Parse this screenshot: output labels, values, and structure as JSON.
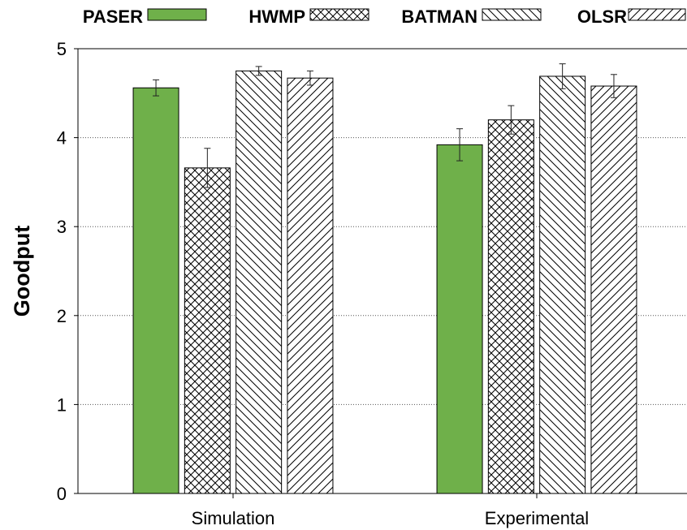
{
  "chart_data": {
    "type": "bar",
    "title": "",
    "xlabel": "",
    "ylabel": "Goodput",
    "ylim": [
      0,
      5
    ],
    "yticks": [
      0,
      1,
      2,
      3,
      4,
      5
    ],
    "grid": "horizontal-dotted",
    "legend_position": "top",
    "categories": [
      "Simulation",
      "Experimental"
    ],
    "series": [
      {
        "name": "PASER",
        "fill": "green",
        "color": "#6fb04a",
        "values": [
          4.56,
          3.92
        ],
        "errors": [
          0.09,
          0.18
        ]
      },
      {
        "name": "HWMP",
        "fill": "crosshatch",
        "color": "#ffffff",
        "values": [
          3.66,
          4.2
        ],
        "errors": [
          0.22,
          0.16
        ]
      },
      {
        "name": "BATMAN",
        "fill": "backslash",
        "color": "#ffffff",
        "values": [
          4.75,
          4.69
        ],
        "errors": [
          0.05,
          0.14
        ]
      },
      {
        "name": "OLSR",
        "fill": "slash",
        "color": "#ffffff",
        "values": [
          4.67,
          4.58
        ],
        "errors": [
          0.08,
          0.13
        ]
      }
    ]
  }
}
